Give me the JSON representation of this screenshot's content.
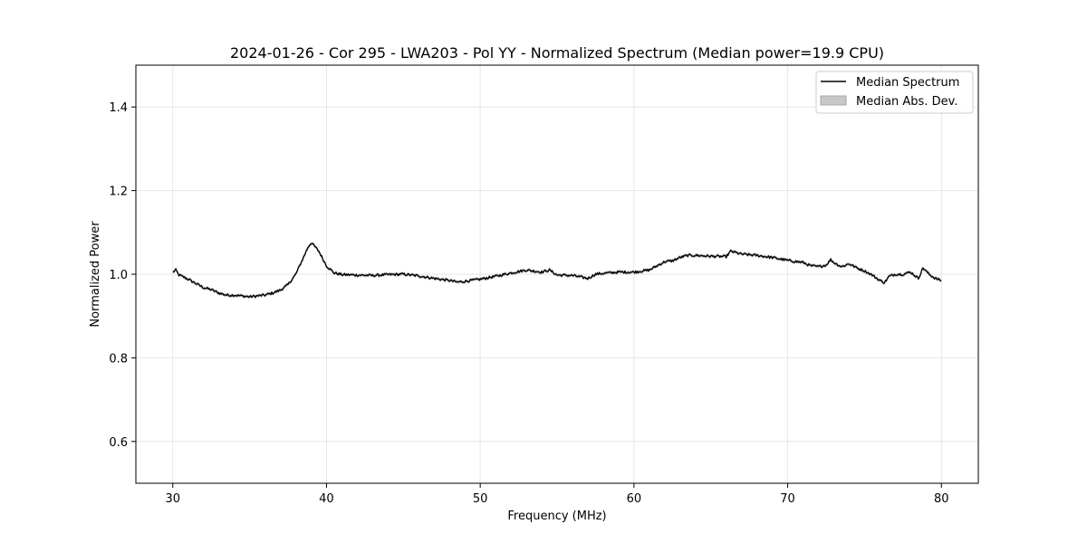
{
  "chart_data": {
    "type": "line",
    "title": "2024-01-26 - Cor 295 - LWA203 - Pol YY - Normalized Spectrum (Median power=19.9 CPU)",
    "xlabel": "Frequency (MHz)",
    "ylabel": "Normalized Power",
    "xlim": [
      27.6,
      82.4
    ],
    "ylim": [
      0.5,
      1.5
    ],
    "xticks": [
      30,
      40,
      50,
      60,
      70,
      80
    ],
    "xtick_labels": [
      "30",
      "40",
      "50",
      "60",
      "70",
      "80"
    ],
    "yticks": [
      0.6,
      0.8,
      1.0,
      1.2,
      1.4
    ],
    "ytick_labels": [
      "0.6",
      "0.8",
      "1.0",
      "1.2",
      "1.4"
    ],
    "grid": true,
    "legend": {
      "location": "top-right",
      "entries": [
        {
          "label": "Median Spectrum",
          "kind": "line",
          "color": "#000000"
        },
        {
          "label": "Median Abs. Dev.",
          "kind": "patch",
          "color": "#c8c8c8",
          "edge": "#a8a8a8"
        }
      ]
    },
    "series": [
      {
        "name": "Median Spectrum",
        "color": "#000000",
        "band_name": "Median Abs. Dev.",
        "band_color": "#c0c0c0",
        "band_halfwidth": 0.004,
        "points": [
          [
            30.0,
            1.005
          ],
          [
            30.2,
            1.01
          ],
          [
            30.4,
            0.998
          ],
          [
            30.6,
            0.995
          ],
          [
            31.0,
            0.988
          ],
          [
            31.5,
            0.978
          ],
          [
            32.0,
            0.968
          ],
          [
            32.5,
            0.963
          ],
          [
            33.0,
            0.955
          ],
          [
            33.5,
            0.95
          ],
          [
            34.0,
            0.95
          ],
          [
            34.5,
            0.948
          ],
          [
            35.0,
            0.946
          ],
          [
            35.5,
            0.948
          ],
          [
            36.0,
            0.95
          ],
          [
            36.5,
            0.955
          ],
          [
            37.0,
            0.962
          ],
          [
            37.5,
            0.975
          ],
          [
            38.0,
            1.0
          ],
          [
            38.5,
            1.04
          ],
          [
            38.8,
            1.065
          ],
          [
            39.0,
            1.075
          ],
          [
            39.2,
            1.068
          ],
          [
            39.5,
            1.055
          ],
          [
            40.0,
            1.02
          ],
          [
            40.5,
            1.003
          ],
          [
            41.0,
            0.999
          ],
          [
            42.0,
            0.998
          ],
          [
            43.0,
            0.997
          ],
          [
            44.0,
            0.999
          ],
          [
            45.0,
            1.0
          ],
          [
            46.0,
            0.996
          ],
          [
            47.0,
            0.99
          ],
          [
            48.0,
            0.985
          ],
          [
            48.5,
            0.981
          ],
          [
            49.0,
            0.983
          ],
          [
            50.0,
            0.988
          ],
          [
            51.0,
            0.995
          ],
          [
            52.0,
            1.003
          ],
          [
            53.0,
            1.01
          ],
          [
            54.0,
            1.005
          ],
          [
            54.5,
            1.01
          ],
          [
            55.0,
            0.998
          ],
          [
            56.0,
            0.997
          ],
          [
            57.0,
            0.99
          ],
          [
            57.5,
            1.0
          ],
          [
            58.0,
            1.002
          ],
          [
            59.0,
            1.005
          ],
          [
            60.0,
            1.005
          ],
          [
            61.0,
            1.01
          ],
          [
            61.5,
            1.02
          ],
          [
            62.0,
            1.03
          ],
          [
            62.5,
            1.032
          ],
          [
            63.0,
            1.04
          ],
          [
            63.5,
            1.045
          ],
          [
            64.0,
            1.045
          ],
          [
            65.0,
            1.043
          ],
          [
            66.0,
            1.042
          ],
          [
            66.3,
            1.055
          ],
          [
            67.0,
            1.048
          ],
          [
            68.0,
            1.045
          ],
          [
            69.0,
            1.04
          ],
          [
            70.0,
            1.033
          ],
          [
            71.0,
            1.028
          ],
          [
            71.5,
            1.02
          ],
          [
            72.0,
            1.018
          ],
          [
            72.5,
            1.022
          ],
          [
            72.8,
            1.035
          ],
          [
            73.0,
            1.028
          ],
          [
            73.5,
            1.018
          ],
          [
            74.0,
            1.025
          ],
          [
            74.5,
            1.015
          ],
          [
            75.0,
            1.008
          ],
          [
            75.5,
            0.998
          ],
          [
            76.0,
            0.985
          ],
          [
            76.3,
            0.98
          ],
          [
            76.6,
            0.995
          ],
          [
            77.0,
            1.0
          ],
          [
            77.5,
            1.0
          ],
          [
            78.0,
            1.005
          ],
          [
            78.5,
            0.99
          ],
          [
            78.8,
            1.015
          ],
          [
            79.2,
            1.0
          ],
          [
            79.6,
            0.99
          ],
          [
            80.0,
            0.985
          ]
        ]
      }
    ]
  }
}
